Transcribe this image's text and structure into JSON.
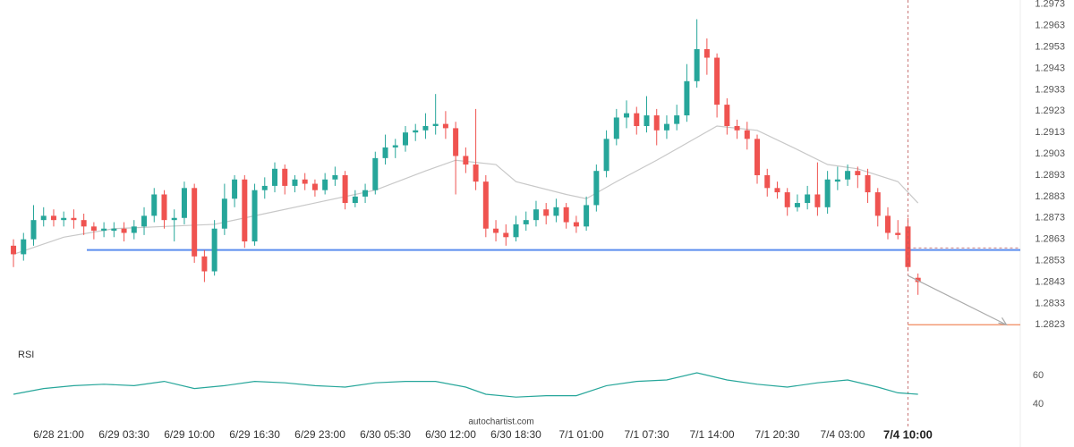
{
  "chart_data": {
    "type": "candlestick",
    "up_color": "#26a69a",
    "down_color": "#ef5350",
    "xlim": [
      -1.34,
      100.18
    ],
    "ylim": [
      1.2816,
      1.2975
    ],
    "yticks": [
      1.2823,
      1.2833,
      1.2843,
      1.2853,
      1.2863,
      1.2873,
      1.2883,
      1.2893,
      1.2903,
      1.2913,
      1.2923,
      1.2933,
      1.2943,
      1.2953,
      1.2963,
      1.2973
    ],
    "xticks": [
      {
        "value": 4.5,
        "label": "6/28 21:00"
      },
      {
        "value": 11,
        "label": "6/29 03:30"
      },
      {
        "value": 17.5,
        "label": "6/29 10:00"
      },
      {
        "value": 24,
        "label": "6/29 16:30"
      },
      {
        "value": 30.5,
        "label": "6/29 23:00"
      },
      {
        "value": 37,
        "label": "6/30 05:30"
      },
      {
        "value": 43.5,
        "label": "6/30 12:00"
      },
      {
        "value": 50,
        "label": "6/30 18:30"
      },
      {
        "value": 56.5,
        "label": "7/1 01:00"
      },
      {
        "value": 63,
        "label": "7/1 07:30"
      },
      {
        "value": 69.5,
        "label": "7/1 14:00"
      },
      {
        "value": 76,
        "label": "7/1 20:30"
      },
      {
        "value": 82.5,
        "label": "7/4 03:00"
      },
      {
        "value": 89,
        "label": "7/4 10:00"
      }
    ],
    "ohlc": [
      [
        1.286,
        1.2863,
        1.285,
        1.2856
      ],
      [
        1.2856,
        1.2866,
        1.2853,
        1.2863
      ],
      [
        1.2863,
        1.2879,
        1.286,
        1.2872
      ],
      [
        1.2872,
        1.2878,
        1.2869,
        1.2874
      ],
      [
        1.2874,
        1.2877,
        1.2869,
        1.2872
      ],
      [
        1.2872,
        1.2876,
        1.2869,
        1.2873
      ],
      [
        1.2873,
        1.2877,
        1.2868,
        1.2872
      ],
      [
        1.2872,
        1.2875,
        1.2865,
        1.2869
      ],
      [
        1.2869,
        1.2871,
        1.2863,
        1.2867
      ],
      [
        1.2867,
        1.2871,
        1.2864,
        1.2868
      ],
      [
        1.2867,
        1.2871,
        1.2864,
        1.2868
      ],
      [
        1.2868,
        1.2871,
        1.2862,
        1.2866
      ],
      [
        1.2866,
        1.2872,
        1.2863,
        1.2869
      ],
      [
        1.2869,
        1.2878,
        1.2865,
        1.2874
      ],
      [
        1.2874,
        1.2887,
        1.2871,
        1.2884
      ],
      [
        1.2884,
        1.2886,
        1.2868,
        1.2872
      ],
      [
        1.2872,
        1.2877,
        1.2862,
        1.2873
      ],
      [
        1.2873,
        1.289,
        1.287,
        1.2887
      ],
      [
        1.2887,
        1.2889,
        1.2852,
        1.2855
      ],
      [
        1.2855,
        1.2858,
        1.2843,
        1.2848
      ],
      [
        1.2848,
        1.2872,
        1.2846,
        1.2868
      ],
      [
        1.2868,
        1.2889,
        1.2865,
        1.2882
      ],
      [
        1.2882,
        1.2893,
        1.2878,
        1.2891
      ],
      [
        1.2891,
        1.2893,
        1.2859,
        1.2862
      ],
      [
        1.2862,
        1.2889,
        1.286,
        1.2886
      ],
      [
        1.2886,
        1.2892,
        1.2882,
        1.2888
      ],
      [
        1.2888,
        1.2899,
        1.2885,
        1.2896
      ],
      [
        1.2896,
        1.2898,
        1.2884,
        1.2888
      ],
      [
        1.2888,
        1.2893,
        1.2885,
        1.2891
      ],
      [
        1.2891,
        1.2894,
        1.2886,
        1.2889
      ],
      [
        1.2889,
        1.2891,
        1.2883,
        1.2886
      ],
      [
        1.2886,
        1.2894,
        1.2884,
        1.2891
      ],
      [
        1.2891,
        1.2897,
        1.2888,
        1.2893
      ],
      [
        1.2893,
        1.2895,
        1.2877,
        1.288
      ],
      [
        1.288,
        1.2886,
        1.2878,
        1.2883
      ],
      [
        1.2883,
        1.2889,
        1.288,
        1.2886
      ],
      [
        1.2886,
        1.2904,
        1.2884,
        1.2901
      ],
      [
        1.2901,
        1.2912,
        1.2898,
        1.2906
      ],
      [
        1.2906,
        1.291,
        1.2901,
        1.2907
      ],
      [
        1.2907,
        1.2916,
        1.2904,
        1.2913
      ],
      [
        1.2913,
        1.2917,
        1.2909,
        1.2914
      ],
      [
        1.2914,
        1.2922,
        1.291,
        1.2916
      ],
      [
        1.2916,
        1.2931,
        1.2912,
        1.2917
      ],
      [
        1.2917,
        1.2923,
        1.291,
        1.2915
      ],
      [
        1.2915,
        1.2918,
        1.2884,
        1.2902
      ],
      [
        1.2902,
        1.2906,
        1.2894,
        1.2898
      ],
      [
        1.2898,
        1.2924,
        1.2886,
        1.289
      ],
      [
        1.289,
        1.2893,
        1.2864,
        1.2868
      ],
      [
        1.2868,
        1.2872,
        1.2862,
        1.2866
      ],
      [
        1.2866,
        1.287,
        1.286,
        1.2864
      ],
      [
        1.2864,
        1.2874,
        1.2862,
        1.287
      ],
      [
        1.287,
        1.2876,
        1.2867,
        1.2872
      ],
      [
        1.2872,
        1.2881,
        1.2869,
        1.2877
      ],
      [
        1.2877,
        1.288,
        1.287,
        1.2874
      ],
      [
        1.2874,
        1.2882,
        1.2871,
        1.2878
      ],
      [
        1.2878,
        1.288,
        1.2868,
        1.2871
      ],
      [
        1.2871,
        1.2874,
        1.2866,
        1.2869
      ],
      [
        1.2869,
        1.2883,
        1.2867,
        1.2879
      ],
      [
        1.2879,
        1.2898,
        1.2876,
        1.2895
      ],
      [
        1.2895,
        1.2914,
        1.2892,
        1.291
      ],
      [
        1.291,
        1.2924,
        1.2907,
        1.292
      ],
      [
        1.292,
        1.2928,
        1.2915,
        1.2922
      ],
      [
        1.2922,
        1.2925,
        1.2912,
        1.2916
      ],
      [
        1.2916,
        1.293,
        1.2913,
        1.2921
      ],
      [
        1.2921,
        1.2924,
        1.2907,
        1.2914
      ],
      [
        1.2914,
        1.2921,
        1.291,
        1.2917
      ],
      [
        1.2917,
        1.2926,
        1.2914,
        1.2921
      ],
      [
        1.2921,
        1.2945,
        1.2918,
        1.2937
      ],
      [
        1.2937,
        1.2966,
        1.2934,
        1.2952
      ],
      [
        1.2952,
        1.2957,
        1.294,
        1.2948
      ],
      [
        1.2948,
        1.295,
        1.292,
        1.2926
      ],
      [
        1.2926,
        1.2929,
        1.2912,
        1.2916
      ],
      [
        1.2916,
        1.2919,
        1.291,
        1.2914
      ],
      [
        1.2914,
        1.2918,
        1.2905,
        1.291
      ],
      [
        1.291,
        1.2912,
        1.2889,
        1.2893
      ],
      [
        1.2893,
        1.2896,
        1.2883,
        1.2887
      ],
      [
        1.2887,
        1.289,
        1.2882,
        1.2885
      ],
      [
        1.2885,
        1.2887,
        1.2874,
        1.2878
      ],
      [
        1.2878,
        1.2884,
        1.2876,
        1.288
      ],
      [
        1.288,
        1.2888,
        1.2877,
        1.2884
      ],
      [
        1.2884,
        1.2899,
        1.2874,
        1.2878
      ],
      [
        1.2878,
        1.2895,
        1.2875,
        1.2891
      ],
      [
        1.289,
        1.2897,
        1.2886,
        1.2891
      ],
      [
        1.2891,
        1.2898,
        1.2888,
        1.2895
      ],
      [
        1.2895,
        1.2897,
        1.2887,
        1.2893
      ],
      [
        1.2893,
        1.2896,
        1.288,
        1.2885
      ],
      [
        1.2885,
        1.2887,
        1.2869,
        1.2874
      ],
      [
        1.2874,
        1.2878,
        1.2863,
        1.2866
      ],
      [
        1.2866,
        1.2872,
        1.2863,
        1.2865
      ],
      [
        1.2869,
        1.2873,
        1.2848,
        1.285
      ],
      [
        1.2845,
        1.2847,
        1.2837,
        1.2843
      ]
    ],
    "ma": {
      "color": "#c8c8c8",
      "x": [
        0,
        5,
        10,
        15,
        20,
        25,
        30,
        36,
        41,
        44,
        48,
        50,
        55,
        57,
        60,
        64,
        67,
        70,
        74,
        78,
        81,
        84,
        88,
        90
      ],
      "values": [
        1.2856,
        1.2864,
        1.2868,
        1.2869,
        1.287,
        1.2875,
        1.288,
        1.2886,
        1.2895,
        1.29,
        1.2898,
        1.289,
        1.2884,
        1.2882,
        1.289,
        1.29,
        1.2908,
        1.2916,
        1.2914,
        1.2905,
        1.2898,
        1.2896,
        1.289,
        1.288
      ]
    },
    "support": {
      "price": 1.2858,
      "start": 7.3,
      "color": "#5b8def"
    },
    "target": {
      "price": 1.2823,
      "start": 89,
      "color": "#f08a5d"
    },
    "current": {
      "x": 89,
      "price": 1.2859
    },
    "forecast": {
      "x": [
        89,
        98.8
      ],
      "values": [
        1.2846,
        1.2823
      ]
    },
    "rsi": {
      "label": "RSI",
      "color": "#26a69a",
      "ylim": [
        32,
        72
      ],
      "yticks": [
        40,
        60
      ],
      "x": [
        0,
        3,
        6,
        9,
        12,
        15,
        18,
        21,
        24,
        27,
        30,
        33,
        36,
        39,
        42,
        45,
        47,
        50,
        53,
        56,
        59,
        62,
        65,
        68,
        71,
        74,
        77,
        80,
        83,
        86,
        88,
        90
      ],
      "values": [
        47,
        51,
        53,
        54,
        53,
        56,
        51,
        53,
        56,
        55,
        53,
        52,
        55,
        56,
        56,
        52,
        47,
        45,
        46,
        46,
        53,
        56,
        57,
        62,
        57,
        54,
        52,
        55,
        57,
        52,
        48,
        47
      ]
    },
    "watermark": "autochartist.com"
  }
}
